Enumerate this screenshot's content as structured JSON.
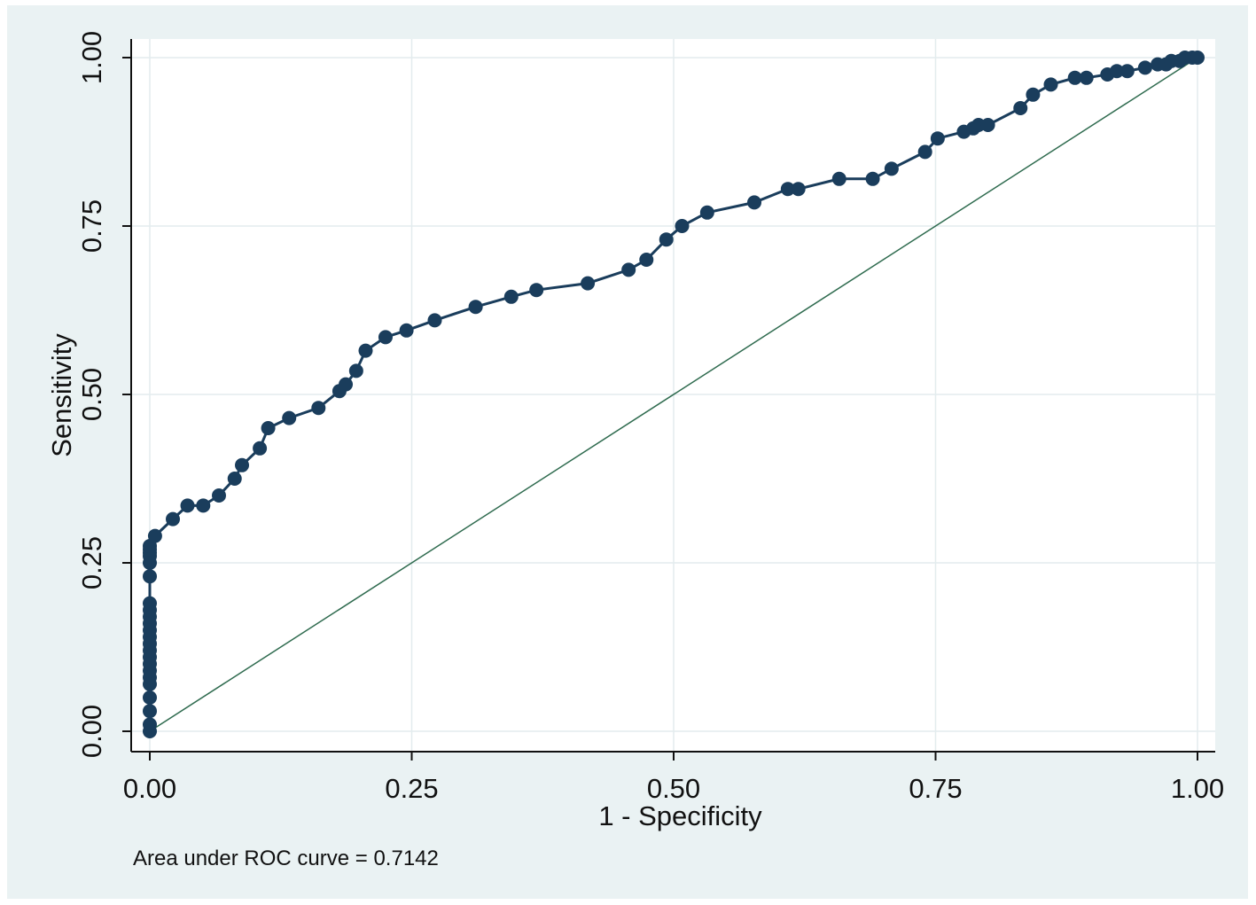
{
  "colors": {
    "background": "#eaf2f3",
    "plot_area": "#ffffff",
    "grid": "#e3ecee",
    "curve": "#1a3d5c",
    "reference_line": "#2f6b4f"
  },
  "note": "Area under ROC curve = 0.7142",
  "chart_data": {
    "type": "line",
    "xlabel": "1 - Specificity",
    "ylabel": "Sensitivity",
    "xlim": [
      0,
      1
    ],
    "ylim": [
      0,
      1
    ],
    "xticks": [
      "0.00",
      "0.25",
      "0.50",
      "0.75",
      "1.00"
    ],
    "yticks": [
      "0.00",
      "0.25",
      "0.50",
      "0.75",
      "1.00"
    ],
    "grid": true,
    "legend": "none",
    "series": [
      {
        "marker": "circle",
        "x": [
          0,
          0,
          0,
          0,
          0,
          0,
          0,
          0,
          0,
          0,
          0,
          0,
          0,
          0,
          0,
          0,
          0,
          0,
          0,
          0,
          0,
          0,
          0,
          0.005,
          0.022,
          0.036,
          0.051,
          0.066,
          0.081,
          0.088,
          0.105,
          0.113,
          0.133,
          0.161,
          0.181,
          0.187,
          0.197,
          0.206,
          0.225,
          0.245,
          0.272,
          0.311,
          0.345,
          0.369,
          0.418,
          0.457,
          0.474,
          0.493,
          0.508,
          0.532,
          0.577,
          0.609,
          0.619,
          0.658,
          0.69,
          0.708,
          0.74,
          0.752,
          0.777,
          0.786,
          0.791,
          0.8,
          0.831,
          0.843,
          0.86,
          0.883,
          0.894,
          0.914,
          0.923,
          0.933,
          0.95,
          0.962,
          0.97,
          0.975,
          0.983,
          0.988,
          0.995,
          1
        ],
        "y": [
          0,
          0.01,
          0.03,
          0.05,
          0.07,
          0.08,
          0.09,
          0.1,
          0.11,
          0.12,
          0.13,
          0.14,
          0.15,
          0.16,
          0.17,
          0.18,
          0.19,
          0.23,
          0.25,
          0.26,
          0.265,
          0.27,
          0.275,
          0.29,
          0.315,
          0.335,
          0.335,
          0.35,
          0.375,
          0.395,
          0.42,
          0.45,
          0.465,
          0.48,
          0.505,
          0.515,
          0.535,
          0.565,
          0.585,
          0.595,
          0.61,
          0.63,
          0.645,
          0.655,
          0.665,
          0.685,
          0.7,
          0.73,
          0.75,
          0.77,
          0.785,
          0.805,
          0.805,
          0.82,
          0.82,
          0.835,
          0.86,
          0.88,
          0.89,
          0.895,
          0.9,
          0.9,
          0.925,
          0.945,
          0.96,
          0.97,
          0.97,
          0.975,
          0.98,
          0.98,
          0.985,
          0.99,
          0.99,
          0.995,
          0.995,
          1,
          1,
          1
        ]
      },
      {
        "marker": "none",
        "x": [
          0,
          1
        ],
        "y": [
          0,
          1
        ]
      }
    ]
  }
}
